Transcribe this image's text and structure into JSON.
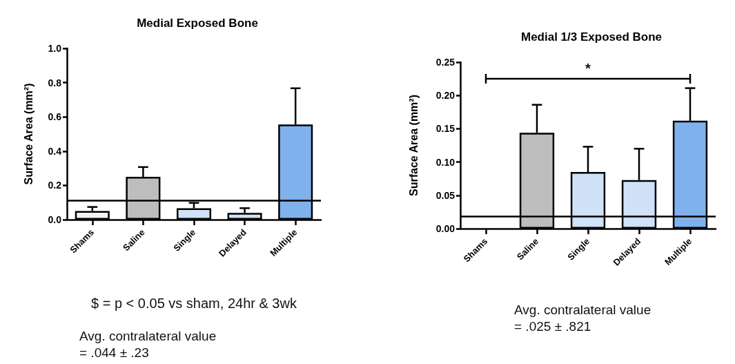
{
  "chart_data": [
    {
      "type": "bar",
      "title": "Medial Exposed Bone",
      "ylabel": "Surface Area (mm²)",
      "categories": [
        "Shams",
        "Saline",
        "Single",
        "Delayed",
        "Multiple"
      ],
      "values": [
        0.05,
        0.25,
        0.067,
        0.039,
        0.555
      ],
      "colors": [
        "#f2f2f2",
        "#bdbdbd",
        "#cfe2f7",
        "#cfe2f7",
        "#7fb2ec"
      ],
      "errors": [
        [
          0.05,
          0.074
        ],
        [
          0.25,
          0.307
        ],
        [
          0.067,
          0.098
        ],
        [
          0.039,
          0.067
        ],
        [
          0.555,
          0.767
        ]
      ],
      "ylim": [
        0,
        1.0
      ],
      "yticks": [
        {
          "value": 0,
          "label": "0.0"
        },
        0.2,
        0.4,
        0.6,
        0.8,
        {
          "value": 1.0,
          "label": "1.0"
        }
      ],
      "ref_lines": [
        {
          "axis": "y",
          "value": 0.11,
          "color": "#000000"
        }
      ],
      "annotations": [
        "$ = p < 0.05 vs sham, 24hr & 3wk",
        "Avg. contralateral value",
        "= .044 ± .23"
      ]
    },
    {
      "type": "bar",
      "title": "Medial 1/3 Exposed Bone",
      "ylabel": "Surface Area (mm²)",
      "categories": [
        "Shams",
        "Saline",
        "Single",
        "Delayed",
        "Multiple"
      ],
      "values": [
        0,
        0.144,
        0.085,
        0.073,
        0.162
      ],
      "colors": [
        "#f2f2f2",
        "#bdbdbd",
        "#cfe2f7",
        "#cfe2f7",
        "#7fb2ec"
      ],
      "errors": [
        null,
        [
          0.144,
          0.186
        ],
        [
          0.085,
          0.123
        ],
        [
          0.073,
          0.12
        ],
        [
          0.162,
          0.211
        ]
      ],
      "ylim": [
        0,
        0.25
      ],
      "yticks": [
        {
          "value": 0,
          "label": "0.00"
        },
        {
          "value": 0.05,
          "label": "0.05"
        },
        {
          "value": 0.1,
          "label": "0.10"
        },
        {
          "value": 0.15,
          "label": "0.15"
        },
        {
          "value": 0.2,
          "label": "0.20"
        },
        {
          "value": 0.25,
          "label": "0.25"
        }
      ],
      "ref_lines": [
        {
          "axis": "y",
          "value": 0.018,
          "color": "#000000"
        }
      ],
      "annotations": [
        "*",
        "Avg. contralateral value",
        "= .025 ± .821"
      ]
    }
  ]
}
